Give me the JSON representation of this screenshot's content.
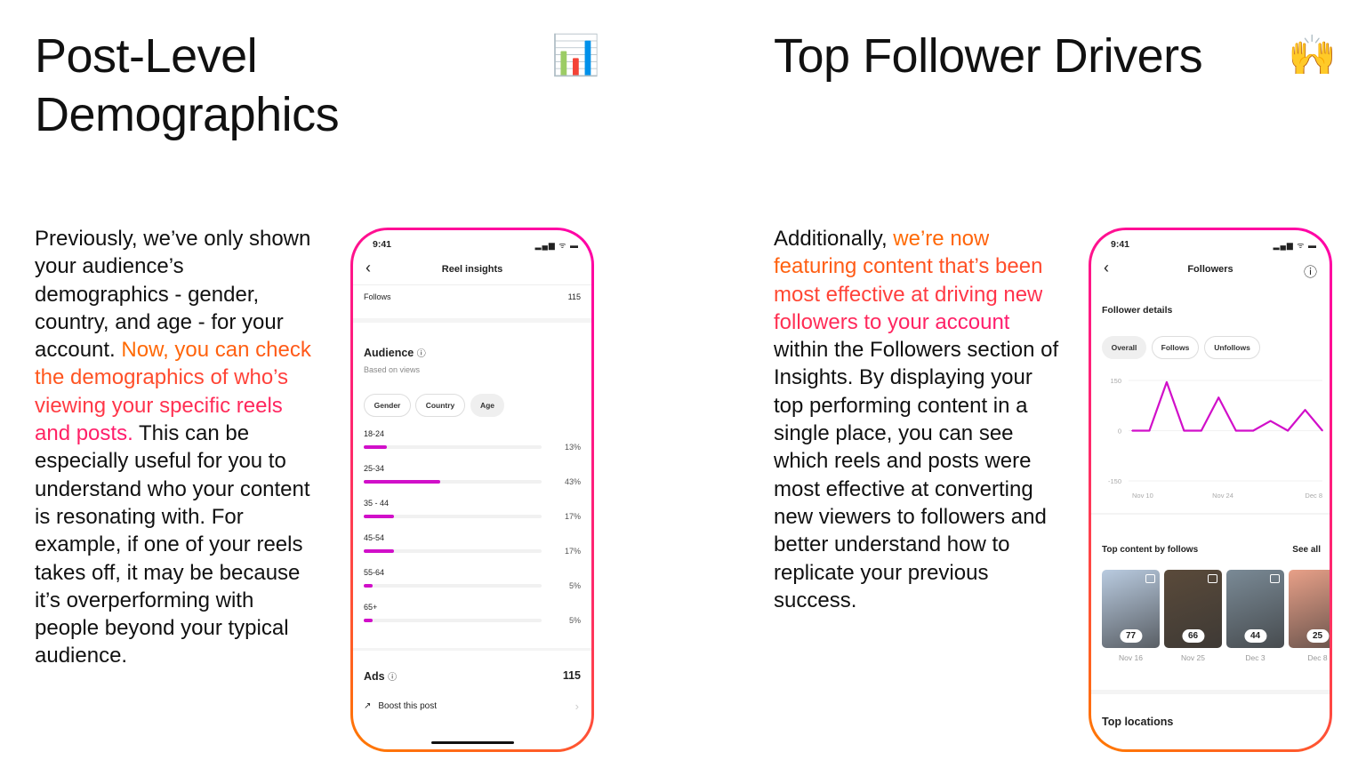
{
  "left": {
    "title_line1": "Post-Level",
    "title_line2": "Demographics",
    "emoji": "📊",
    "para_before": "Previously, we’ve only shown your audience’s demographics - gender, country, and age - for your account. ",
    "para_highlight": "Now, you can check the demographics of who’s viewing your specific reels and posts.",
    "para_after": " This can be especially useful for you to understand who your content is resonating with. For example, if one of your reels takes off, it may be because it’s overperforming with people beyond your typical audience.",
    "phone": {
      "time": "9:41",
      "status_icons": "▂▄▆ ᯤ ▬",
      "title": "Reel insights",
      "follows_label": "Follows",
      "follows_value": "115",
      "audience_title": "Audience",
      "audience_sub": "Based on views",
      "tabs": [
        "Gender",
        "Country",
        "Age"
      ],
      "active_tab": "Age",
      "ages": [
        {
          "label": "18-24",
          "pct": 13,
          "text": "13%"
        },
        {
          "label": "25-34",
          "pct": 43,
          "text": "43%"
        },
        {
          "label": "35 - 44",
          "pct": 17,
          "text": "17%"
        },
        {
          "label": "45-54",
          "pct": 17,
          "text": "17%"
        },
        {
          "label": "55-64",
          "pct": 5,
          "text": "5%"
        },
        {
          "label": "65+",
          "pct": 5,
          "text": "5%"
        }
      ],
      "ads_label": "Ads",
      "ads_value": "115",
      "boost_label": "Boost this post"
    }
  },
  "right": {
    "title": "Top Follower Drivers",
    "emoji": "🙌",
    "para_before": "Additionally, ",
    "para_highlight": "we’re now featuring content that’s been most effective at driving new followers to your account",
    "para_after": " within the Followers section of Insights. By displaying your top performing content in a single place, you can see which reels and posts were most effective at converting new viewers to followers and better understand how to replicate your previous success.",
    "phone": {
      "time": "9:41",
      "status_icons": "▂▄▆ ᯤ ▬",
      "title": "Followers",
      "section_title": "Follower details",
      "tabs": [
        "Overall",
        "Follows",
        "Unfollows"
      ],
      "active_tab": "Overall",
      "top_content_title": "Top content by follows",
      "see_all": "See all",
      "top_content": [
        {
          "count": "77",
          "date": "Nov 16",
          "color": "#b9cbe0"
        },
        {
          "count": "66",
          "date": "Nov 25",
          "color": "#5a4a3a"
        },
        {
          "count": "44",
          "date": "Dec 3",
          "color": "#7a8a96"
        },
        {
          "count": "25",
          "date": "Dec 8",
          "color": "#e8a088"
        }
      ],
      "top_locations_title": "Top locations"
    }
  },
  "chart_data": {
    "type": "line",
    "ylim": [
      -150,
      150
    ],
    "yticks": [
      "150",
      "0",
      "-150"
    ],
    "xticks": [
      "Nov 10",
      "Nov 24",
      "Dec 8"
    ],
    "values": [
      0,
      0,
      145,
      0,
      0,
      99,
      0,
      0,
      29,
      0,
      62,
      0
    ],
    "color": "#d10fc9"
  }
}
